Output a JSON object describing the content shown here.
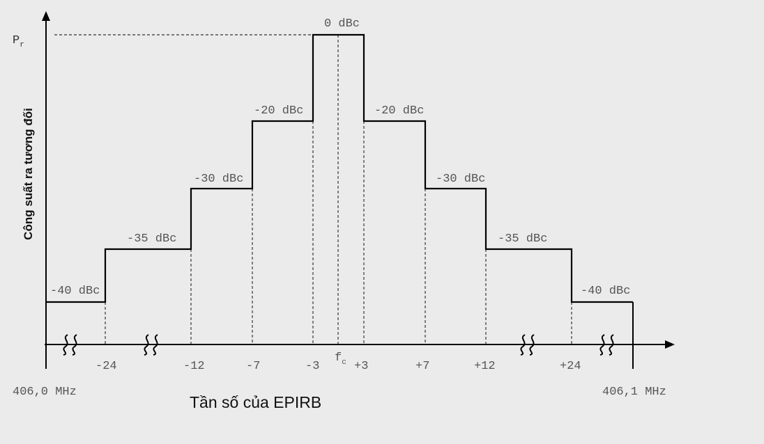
{
  "diagram": {
    "y_axis_title": "Công suất ra tương đối",
    "y_axis_marker": "P",
    "y_axis_marker_sub": "r",
    "x_axis_title": "Tần số của EPIRB",
    "x_left_edge_label": "406,0 MHz",
    "x_right_edge_label": "406,1 MHz",
    "center_label": "f",
    "center_label_sub": "c",
    "steps": [
      {
        "x_from": "-inf",
        "x_to": -24,
        "level_label": "-40 dBc"
      },
      {
        "x_from": -24,
        "x_to": -12,
        "level_label": "-35 dBc"
      },
      {
        "x_from": -12,
        "x_to": -7,
        "level_label": "-30 dBc"
      },
      {
        "x_from": -7,
        "x_to": -3,
        "level_label": "-20 dBc"
      },
      {
        "x_from": -3,
        "x_to": 3,
        "level_label": "0 dBc"
      },
      {
        "x_from": 3,
        "x_to": 7,
        "level_label": "-20 dBc"
      },
      {
        "x_from": 7,
        "x_to": 12,
        "level_label": "-30 dBc"
      },
      {
        "x_from": 12,
        "x_to": 24,
        "level_label": "-35 dBc"
      },
      {
        "x_from": 24,
        "x_to": "+inf",
        "level_label": "-40 dBc"
      }
    ],
    "x_ticks": [
      {
        "value": -24,
        "label": "-24"
      },
      {
        "value": -12,
        "label": "-12"
      },
      {
        "value": -7,
        "label": "-7"
      },
      {
        "value": -3,
        "label": "-3"
      },
      {
        "value": 3,
        "label": "+3"
      },
      {
        "value": 7,
        "label": "+7"
      },
      {
        "value": 12,
        "label": "+12"
      },
      {
        "value": 24,
        "label": "+24"
      }
    ],
    "axis_breaks": 4
  }
}
